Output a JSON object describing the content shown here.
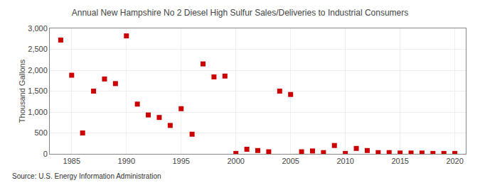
{
  "chart_data": {
    "type": "scatter",
    "title": "Annual New Hampshire No 2 Diesel High Sulfur Sales/Deliveries to Industrial Consumers",
    "ylabel": "Thousand Gallons",
    "source": "Source: U.S. Energy Information Administration",
    "x": [
      1984,
      1985,
      1986,
      1987,
      1988,
      1989,
      1990,
      1991,
      1992,
      1993,
      1994,
      1995,
      1996,
      1997,
      1998,
      1999,
      2000,
      2001,
      2002,
      2003,
      2004,
      2005,
      2006,
      2007,
      2008,
      2009,
      2010,
      2011,
      2012,
      2013,
      2014,
      2015,
      2016,
      2017,
      2018,
      2019,
      2020
    ],
    "values": [
      2720,
      1880,
      500,
      1500,
      1790,
      1680,
      2820,
      1190,
      930,
      870,
      680,
      1080,
      470,
      2150,
      1840,
      1860,
      10,
      110,
      80,
      50,
      1500,
      1420,
      50,
      70,
      30,
      200,
      10,
      130,
      80,
      30,
      30,
      20,
      20,
      20,
      10,
      10,
      10
    ],
    "color": "#cc0000",
    "marker": "square",
    "xlim": [
      1983,
      2021
    ],
    "ylim": [
      0,
      3000
    ],
    "xticks": [
      1985,
      1990,
      1995,
      2000,
      2005,
      2010,
      2015,
      2020
    ],
    "yticks": [
      0,
      500,
      {
        "value": 1000,
        "label": "1,000"
      },
      {
        "value": 1500,
        "label": "1,500"
      },
      {
        "value": 2000,
        "label": "2,000"
      },
      {
        "value": 2500,
        "label": "2,500"
      },
      {
        "value": 3000,
        "label": "3,000"
      }
    ],
    "grid": true
  }
}
